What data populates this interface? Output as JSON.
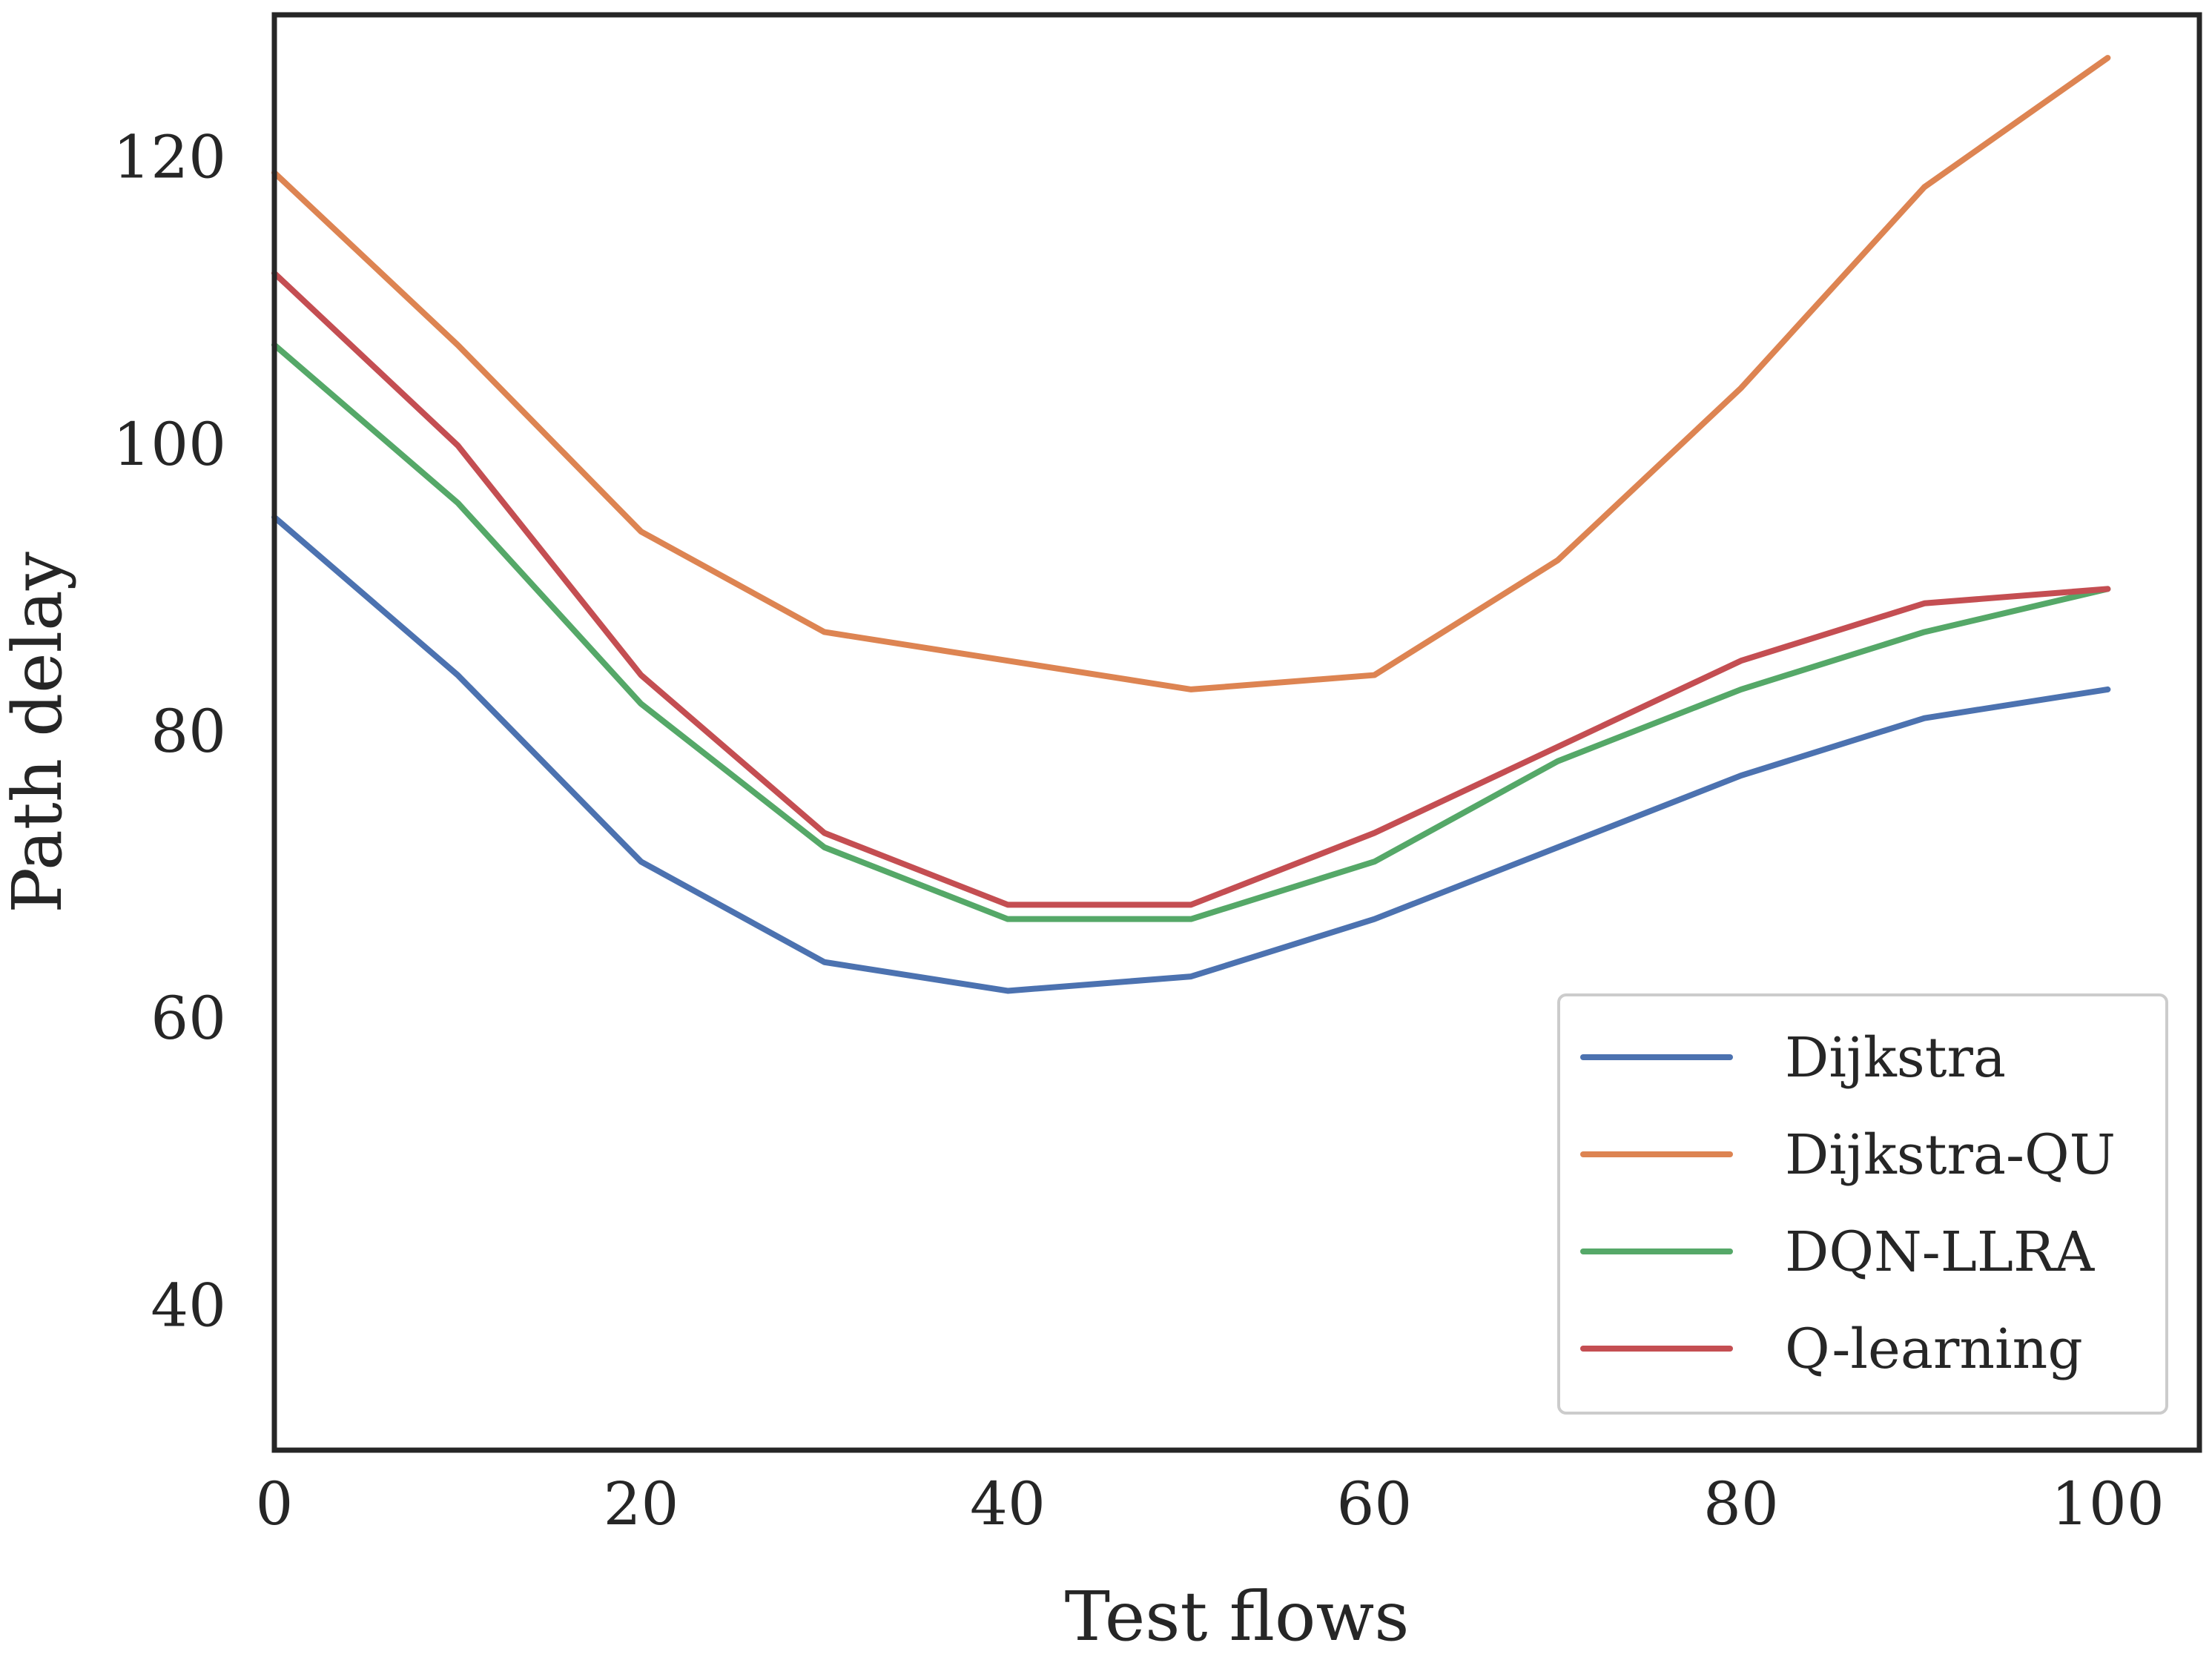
{
  "chart_data": {
    "type": "line",
    "title": "",
    "xlabel": "Test flows",
    "ylabel": "Path delay",
    "xlim": [
      0,
      105
    ],
    "ylim": [
      30,
      130
    ],
    "xticks": [
      0,
      20,
      40,
      60,
      80,
      100
    ],
    "yticks": [
      40,
      60,
      80,
      100,
      120
    ],
    "xtick_labels": [
      "0",
      "20",
      "40",
      "60",
      "80",
      "100"
    ],
    "ytick_labels": [
      "40",
      "60",
      "80",
      "100",
      "120"
    ],
    "grid": false,
    "legend_position": "bottom-right",
    "x": [
      0,
      10,
      20,
      30,
      40,
      50,
      60,
      70,
      80,
      90,
      100
    ],
    "series": [
      {
        "name": "Dijkstra",
        "color": "#4c72b0",
        "values": [
          95,
          84,
          71,
          64,
          62,
          63,
          67,
          72,
          77,
          81,
          83
        ]
      },
      {
        "name": "Dijkstra-QU",
        "color": "#dd8452",
        "values": [
          119,
          107,
          94,
          87,
          85,
          83,
          84,
          92,
          104,
          118,
          127
        ]
      },
      {
        "name": "DQN-LLRA",
        "color": "#55a868",
        "values": [
          107,
          96,
          82,
          72,
          67,
          67,
          71,
          78,
          83,
          87,
          90
        ]
      },
      {
        "name": "Q-learning",
        "color": "#c44e52",
        "values": [
          112,
          100,
          84,
          73,
          68,
          68,
          73,
          79,
          85,
          89,
          90
        ]
      }
    ]
  }
}
